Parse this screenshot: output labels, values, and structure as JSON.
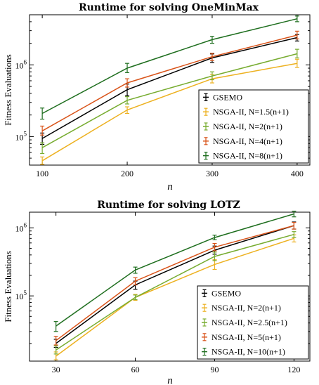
{
  "chart_data": [
    {
      "type": "line",
      "title": "Runtime for solving OneMinMax",
      "xlabel": "n",
      "ylabel": "Fitness Evaluations",
      "yscale": "log",
      "x": [
        100,
        200,
        300,
        400
      ],
      "xlim": [
        85,
        415
      ],
      "ylim": [
        40000,
        5000000
      ],
      "xticks": [
        "100",
        "200",
        "300",
        "400"
      ],
      "yticks": [
        {
          "value": 100000,
          "base": "10",
          "exp": "5"
        },
        {
          "value": 1000000,
          "base": "10",
          "exp": "6"
        }
      ],
      "legend_position": "lower-right",
      "series": [
        {
          "name": "GSEMO",
          "color": "#000000",
          "values": [
            94000,
            450000,
            1250000,
            2400000
          ],
          "err_low": [
            78000,
            370000,
            1080000,
            2150000
          ],
          "err_high": [
            112000,
            540000,
            1420000,
            2650000
          ]
        },
        {
          "name": "NSGA-II, N=1.5(n+1)",
          "color": "#EDB120",
          "values": [
            46000,
            235000,
            640000,
            1050000
          ],
          "err_low": [
            41000,
            210000,
            560000,
            920000
          ],
          "err_high": [
            52000,
            260000,
            740000,
            1200000
          ]
        },
        {
          "name": "NSGA-II, N=2(n+1)",
          "color": "#77AC30",
          "values": [
            70000,
            320000,
            700000,
            1430000
          ],
          "err_low": [
            58000,
            285000,
            620000,
            1250000
          ],
          "err_high": [
            82000,
            360000,
            800000,
            1650000
          ]
        },
        {
          "name": "NSGA-II, N=4(n+1)",
          "color": "#D95319",
          "values": [
            120000,
            560000,
            1300000,
            2600000
          ],
          "err_low": [
            105000,
            490000,
            1150000,
            2300000
          ],
          "err_high": [
            140000,
            640000,
            1450000,
            2950000
          ]
        },
        {
          "name": "NSGA-II, N=8(n+1)",
          "color": "#1E6E1E",
          "values": [
            210000,
            900000,
            2250000,
            4400000
          ],
          "err_low": [
            175000,
            780000,
            2000000,
            4000000
          ],
          "err_high": [
            250000,
            1050000,
            2500000,
            4800000
          ]
        }
      ]
    },
    {
      "type": "line",
      "title": "Runtime for solving LOTZ",
      "xlabel": "n",
      "ylabel": "Fitness Evaluations",
      "yscale": "log",
      "x": [
        30,
        60,
        90,
        120
      ],
      "xlim": [
        20,
        126
      ],
      "ylim": [
        11000,
        1700000
      ],
      "xticks": [
        "30",
        "60",
        "90",
        "120"
      ],
      "yticks": [
        {
          "value": 100000,
          "base": "10",
          "exp": "5"
        },
        {
          "value": 1000000,
          "base": "10",
          "exp": "6"
        }
      ],
      "legend_position": "lower-right",
      "series": [
        {
          "name": "GSEMO",
          "color": "#000000",
          "values": [
            20000,
            145000,
            470000,
            1080000
          ],
          "err_low": [
            17500,
            125000,
            410000,
            960000
          ],
          "err_high": [
            23000,
            165000,
            540000,
            1220000
          ]
        },
        {
          "name": "NSGA-II, N=2(n+1)",
          "color": "#EDB120",
          "values": [
            13000,
            95000,
            290000,
            700000
          ],
          "err_low": [
            11500,
            86000,
            245000,
            620000
          ],
          "err_high": [
            15000,
            105000,
            340000,
            790000
          ]
        },
        {
          "name": "NSGA-II, N=2.5(n+1)",
          "color": "#77AC30",
          "values": [
            16000,
            95000,
            380000,
            800000
          ],
          "err_low": [
            14000,
            88000,
            330000,
            720000
          ],
          "err_high": [
            18500,
            103000,
            440000,
            880000
          ]
        },
        {
          "name": "NSGA-II, N=5(n+1)",
          "color": "#D95319",
          "values": [
            22000,
            165000,
            520000,
            1080000
          ],
          "err_low": [
            19000,
            145000,
            460000,
            960000
          ],
          "err_high": [
            25500,
            185000,
            590000,
            1200000
          ]
        },
        {
          "name": "NSGA-II, N=10(n+1)",
          "color": "#1E6E1E",
          "values": [
            36000,
            240000,
            720000,
            1600000
          ],
          "err_low": [
            30000,
            215000,
            670000,
            1450000
          ],
          "err_high": [
            42000,
            265000,
            780000,
            1760000
          ]
        }
      ]
    }
  ]
}
